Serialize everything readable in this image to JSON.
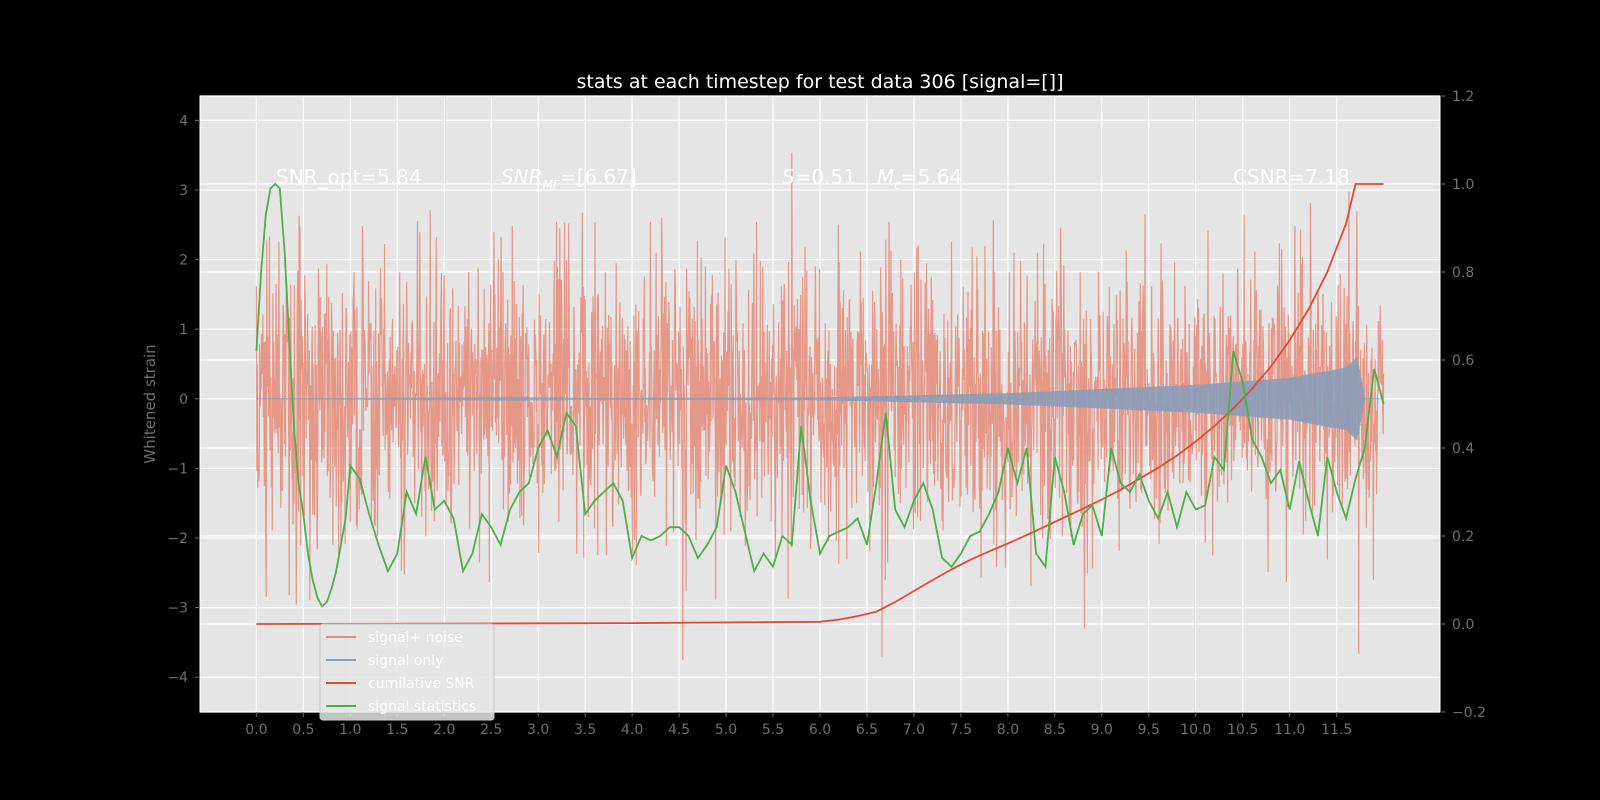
{
  "chart_data": {
    "type": "line",
    "title": "stats at each timestep for test data 306 [signal=[]]",
    "ylabel": "Whitened strain",
    "xlim": [
      -0.6,
      12.6
    ],
    "ylim": [
      -4.5,
      4.35
    ],
    "y2lim": [
      -0.2,
      1.2
    ],
    "grid": true,
    "legend_position": "bottom-left",
    "x_ticks": [
      "0.0",
      "0.5",
      "1.0",
      "1.5",
      "2.0",
      "2.5",
      "3.0",
      "3.5",
      "4.0",
      "4.5",
      "5.0",
      "5.5",
      "6.0",
      "6.5",
      "7.0",
      "7.5",
      "8.0",
      "8.5",
      "9.0",
      "9.5",
      "10.0",
      "10.5",
      "11.0",
      "11.5"
    ],
    "y_ticks": [
      "4",
      "3",
      "2",
      "1",
      "0",
      "−1",
      "−2",
      "−3",
      "−4"
    ],
    "y2_ticks": [
      "1.2",
      "1.0",
      "0.8",
      "0.6",
      "0.4",
      "0.2",
      "0.0",
      "−0.2"
    ],
    "annotations": {
      "snr_opt": "SNR_opt=5.84",
      "snr_mf_main": "SNR",
      "snr_mf_sub": "MF",
      "snr_mf_value": "=[6.67]",
      "s_label": "S",
      "s_value": "=0.51",
      "mc_label": "M",
      "mc_sub": "c",
      "mc_value": "=5.64",
      "csnr": "CSNR=7.18"
    },
    "series": [
      {
        "name": "signal+ noise",
        "color": "#e58a78",
        "axis": "left",
        "kind": "gaussian-noise",
        "x_range": [
          0.0,
          12.0
        ],
        "std": 1.0,
        "range": [
          -3.75,
          3.85
        ]
      },
      {
        "name": "signal only",
        "color": "#8b9cb8",
        "axis": "left",
        "kind": "chirp",
        "x_range": [
          0.0,
          12.0
        ],
        "amplitude_points": [
          [
            0.0,
            0.0
          ],
          [
            6.0,
            0.02
          ],
          [
            8.0,
            0.08
          ],
          [
            10.0,
            0.2
          ],
          [
            11.0,
            0.3
          ],
          [
            11.6,
            0.45
          ],
          [
            11.72,
            0.6
          ],
          [
            11.8,
            0.0
          ],
          [
            12.0,
            0.0
          ]
        ]
      },
      {
        "name": "cumilative SNR",
        "color": "#e24a33",
        "axis": "right",
        "x": [
          0.0,
          2.0,
          4.0,
          6.0,
          6.2,
          6.4,
          6.6,
          6.8,
          7.0,
          7.2,
          7.4,
          7.6,
          7.8,
          8.0,
          8.2,
          8.4,
          8.6,
          8.8,
          9.0,
          9.2,
          9.4,
          9.6,
          9.8,
          10.0,
          10.2,
          10.4,
          10.6,
          10.8,
          11.0,
          11.2,
          11.4,
          11.6,
          11.7,
          11.8,
          12.0
        ],
        "values": [
          0.0,
          0.001,
          0.002,
          0.005,
          0.01,
          0.018,
          0.028,
          0.05,
          0.075,
          0.1,
          0.124,
          0.146,
          0.165,
          0.183,
          0.202,
          0.222,
          0.242,
          0.262,
          0.283,
          0.305,
          0.33,
          0.355,
          0.383,
          0.415,
          0.45,
          0.49,
          0.535,
          0.585,
          0.645,
          0.715,
          0.8,
          0.91,
          1.0,
          1.0,
          1.0
        ]
      },
      {
        "name": "signal statistics",
        "color": "#4daf4a",
        "axis": "right",
        "x": [
          0.0,
          0.05,
          0.1,
          0.15,
          0.2,
          0.25,
          0.3,
          0.35,
          0.4,
          0.45,
          0.5,
          0.55,
          0.6,
          0.65,
          0.7,
          0.75,
          0.8,
          0.85,
          0.9,
          0.95,
          1.0,
          1.1,
          1.2,
          1.3,
          1.4,
          1.5,
          1.6,
          1.7,
          1.8,
          1.9,
          2.0,
          2.1,
          2.2,
          2.3,
          2.4,
          2.5,
          2.6,
          2.7,
          2.8,
          2.9,
          3.0,
          3.1,
          3.2,
          3.3,
          3.4,
          3.5,
          3.6,
          3.7,
          3.8,
          3.9,
          4.0,
          4.1,
          4.2,
          4.3,
          4.4,
          4.5,
          4.6,
          4.7,
          4.8,
          4.9,
          5.0,
          5.1,
          5.2,
          5.3,
          5.4,
          5.5,
          5.6,
          5.7,
          5.8,
          5.9,
          6.0,
          6.1,
          6.2,
          6.3,
          6.4,
          6.5,
          6.6,
          6.7,
          6.8,
          6.9,
          7.0,
          7.1,
          7.2,
          7.3,
          7.4,
          7.5,
          7.6,
          7.7,
          7.8,
          7.9,
          8.0,
          8.1,
          8.2,
          8.3,
          8.4,
          8.5,
          8.6,
          8.7,
          8.8,
          8.9,
          9.0,
          9.1,
          9.2,
          9.3,
          9.4,
          9.5,
          9.6,
          9.7,
          9.8,
          9.9,
          10.0,
          10.1,
          10.2,
          10.3,
          10.4,
          10.5,
          10.6,
          10.7,
          10.8,
          10.9,
          11.0,
          11.1,
          11.2,
          11.3,
          11.4,
          11.5,
          11.6,
          11.7,
          11.8,
          11.9,
          12.0
        ],
        "values": [
          0.62,
          0.8,
          0.93,
          0.99,
          1.0,
          0.99,
          0.85,
          0.65,
          0.45,
          0.32,
          0.25,
          0.16,
          0.1,
          0.06,
          0.04,
          0.05,
          0.08,
          0.12,
          0.18,
          0.24,
          0.36,
          0.33,
          0.25,
          0.18,
          0.12,
          0.16,
          0.3,
          0.25,
          0.38,
          0.26,
          0.28,
          0.24,
          0.12,
          0.16,
          0.25,
          0.22,
          0.18,
          0.26,
          0.3,
          0.32,
          0.4,
          0.44,
          0.38,
          0.48,
          0.45,
          0.25,
          0.28,
          0.3,
          0.32,
          0.28,
          0.15,
          0.2,
          0.19,
          0.2,
          0.22,
          0.22,
          0.2,
          0.15,
          0.18,
          0.22,
          0.36,
          0.3,
          0.21,
          0.12,
          0.16,
          0.13,
          0.2,
          0.18,
          0.45,
          0.28,
          0.16,
          0.2,
          0.21,
          0.22,
          0.24,
          0.18,
          0.32,
          0.48,
          0.26,
          0.22,
          0.28,
          0.32,
          0.26,
          0.15,
          0.13,
          0.16,
          0.2,
          0.21,
          0.25,
          0.3,
          0.4,
          0.32,
          0.4,
          0.16,
          0.13,
          0.38,
          0.3,
          0.18,
          0.25,
          0.27,
          0.2,
          0.4,
          0.32,
          0.3,
          0.34,
          0.28,
          0.24,
          0.3,
          0.22,
          0.3,
          0.26,
          0.27,
          0.38,
          0.35,
          0.62,
          0.55,
          0.42,
          0.38,
          0.32,
          0.35,
          0.26,
          0.37,
          0.28,
          0.2,
          0.38,
          0.3,
          0.24,
          0.33,
          0.4,
          0.58,
          0.5
        ]
      }
    ]
  }
}
